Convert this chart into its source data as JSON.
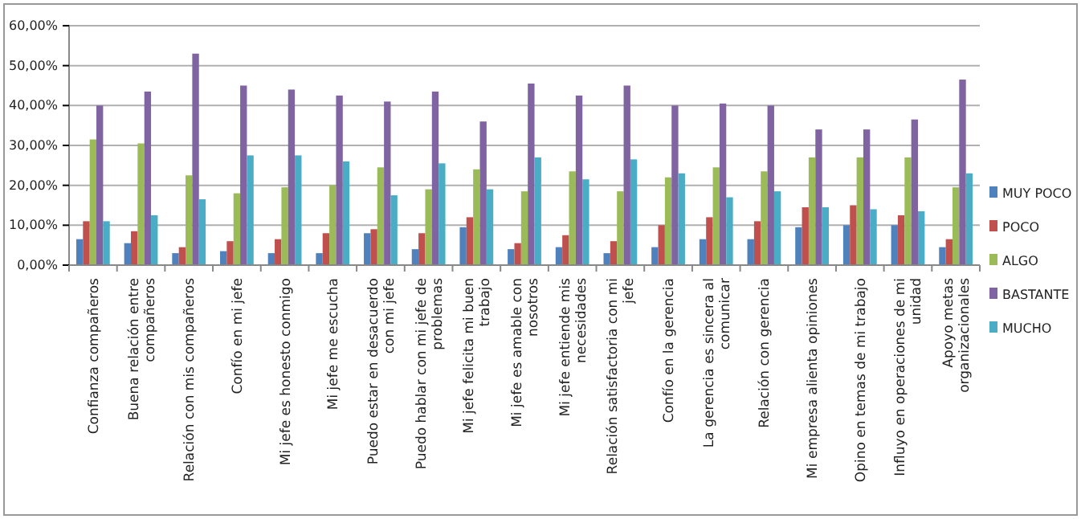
{
  "chart_data": {
    "type": "bar",
    "categories": [
      "Confianza compañeros",
      "Buena relación entre compañeros",
      "Relación con mis compañeros",
      "Confío en mi jefe",
      "Mi jefe es honesto conmigo",
      "Mi jefe me escucha",
      "Puedo estar en desacuerdo con mi jefe",
      "Puedo hablar con mi jefe de problemas",
      "Mi jefe felicita mi buen trabajo",
      "Mi jefe es amable con nosotros",
      "Mi jefe entiende mis necesidades",
      "Relación satisfactoria con mi jefe",
      "Confío en la gerencia",
      "La gerencia es sincera al comunicar",
      "Relación con gerencia",
      "Mi empresa alienta opiniones",
      "Opino en temas de mi trabajo",
      "Influyo en operaciones de mi unidad",
      "Apoyo metas organizacionales"
    ],
    "series": [
      {
        "name": "MUY POCO",
        "color": "#4f81bd",
        "values": [
          6.5,
          5.5,
          3,
          3.5,
          3,
          3,
          8,
          4,
          9.5,
          4,
          4.5,
          3,
          4.5,
          6.5,
          6.5,
          9.5,
          10,
          10,
          4.5
        ]
      },
      {
        "name": "POCO",
        "color": "#c0504d",
        "values": [
          11,
          8.5,
          4.5,
          6,
          6.5,
          8,
          9,
          8,
          12,
          5.5,
          7.5,
          6,
          10,
          12,
          11,
          14.5,
          15,
          12.5,
          6.5
        ]
      },
      {
        "name": "ALGO",
        "color": "#9bbb59",
        "values": [
          31.5,
          30.5,
          22.5,
          18,
          19.5,
          20,
          24.5,
          19,
          24,
          18.5,
          23.5,
          18.5,
          22,
          24.5,
          23.5,
          27,
          27,
          27,
          19.5
        ]
      },
      {
        "name": "BASTANTE",
        "color": "#8064a2",
        "values": [
          40,
          43.5,
          53,
          45,
          44,
          42.5,
          41,
          43.5,
          36,
          45.5,
          42.5,
          45,
          40,
          40.5,
          40,
          34,
          34,
          36.5,
          46.5
        ]
      },
      {
        "name": "MUCHO",
        "color": "#4bacc6",
        "values": [
          11,
          12.5,
          16.5,
          27.5,
          27.5,
          26,
          17.5,
          25.5,
          19,
          27,
          21.5,
          26.5,
          23,
          17,
          18.5,
          14.5,
          14,
          13.5,
          23
        ]
      }
    ],
    "ylim": [
      0,
      60
    ],
    "yticks": [
      {
        "value": 0,
        "label": "0,00%"
      },
      {
        "value": 10,
        "label": "10,00%"
      },
      {
        "value": 20,
        "label": "20,00%"
      },
      {
        "value": 30,
        "label": "30,00%"
      },
      {
        "value": 40,
        "label": "40,00%"
      },
      {
        "value": 50,
        "label": "50,00%"
      },
      {
        "value": 60,
        "label": "60,00%"
      }
    ],
    "grid": "y",
    "legend": "right"
  }
}
